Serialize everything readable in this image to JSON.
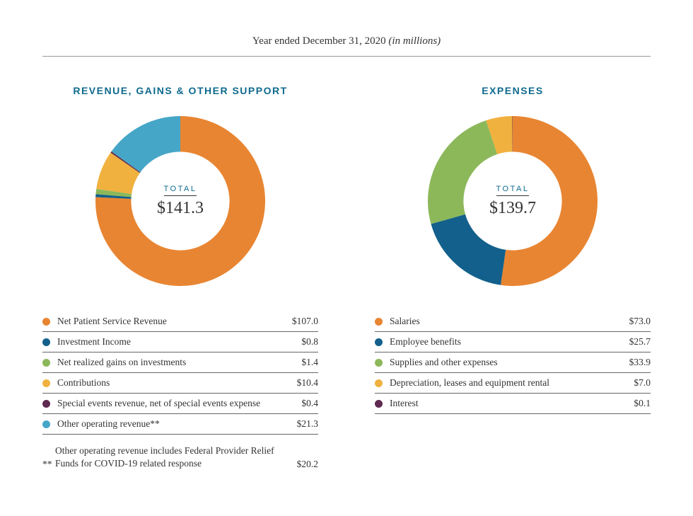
{
  "header": {
    "prefix": "Year ended December 31, 2020 ",
    "suffix_italic": "(in millions)"
  },
  "chart_style": {
    "type": "donut",
    "outer_radius": 100,
    "inner_radius": 58,
    "start_angle_deg": 0,
    "background_color": "#ffffff",
    "title_color": "#0e6a8e",
    "title_fontsize": 14,
    "center_word_fontsize": 11,
    "center_value_fontsize": 24,
    "legend_fontsize": 13.5,
    "legend_border_color": "#666666",
    "swatch_diameter": 11
  },
  "palette": {
    "orange": "#e88532",
    "navy": "#12608b",
    "green": "#8cb85a",
    "gold": "#f0b13e",
    "plum": "#5e2a50",
    "sky": "#46a6c7"
  },
  "charts": [
    {
      "title": "REVENUE, GAINS & OTHER SUPPORT",
      "total_label": "TOTAL",
      "total_value": "$141.3",
      "total_numeric": 141.3,
      "items": [
        {
          "label": "Net Patient Service Revenue",
          "value": 107.0,
          "display": "$107.0",
          "color": "#e88532"
        },
        {
          "label": "Investment Income",
          "value": 0.8,
          "display": "$0.8",
          "color": "#12608b"
        },
        {
          "label": "Net realized gains on investments",
          "value": 1.4,
          "display": "$1.4",
          "color": "#8cb85a"
        },
        {
          "label": "Contributions",
          "value": 10.4,
          "display": "$10.4",
          "color": "#f0b13e"
        },
        {
          "label": "Special events revenue, net of special events expense",
          "value": 0.4,
          "display": "$0.4",
          "color": "#5e2a50"
        },
        {
          "label": "Other operating revenue**",
          "value": 21.3,
          "display": "$21.3",
          "color": "#46a6c7"
        }
      ],
      "footnote": {
        "marker": "**",
        "text": "Other operating revenue includes Federal Provider Relief Funds for COVID-19 related response",
        "value": "$20.2"
      }
    },
    {
      "title": "EXPENSES",
      "total_label": "TOTAL",
      "total_value": "$139.7",
      "total_numeric": 139.7,
      "items": [
        {
          "label": "Salaries",
          "value": 73.0,
          "display": "$73.0",
          "color": "#e88532"
        },
        {
          "label": "Employee benefits",
          "value": 25.7,
          "display": "$25.7",
          "color": "#12608b"
        },
        {
          "label": "Supplies and other expenses",
          "value": 33.9,
          "display": "$33.9",
          "color": "#8cb85a"
        },
        {
          "label": "Depreciation, leases and equipment rental",
          "value": 7.0,
          "display": "$7.0",
          "color": "#f0b13e"
        },
        {
          "label": "Interest",
          "value": 0.1,
          "display": "$0.1",
          "color": "#5e2a50"
        }
      ]
    }
  ]
}
